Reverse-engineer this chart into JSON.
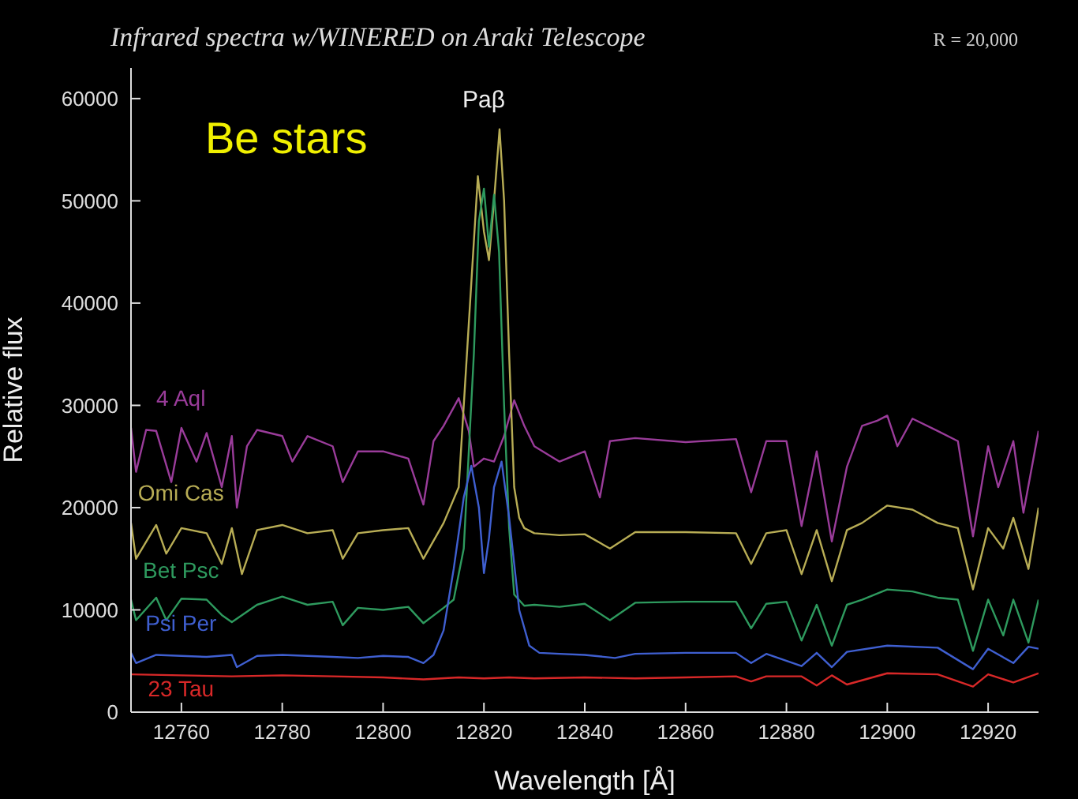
{
  "chart_data": {
    "type": "line",
    "title": "Infrared spectra w/WINERED on Araki Telescope",
    "xlabel": "Wavelength [Å]",
    "ylabel": "Relative flux",
    "annotations": [
      "R = 20,000",
      "Be stars",
      "Paβ"
    ],
    "xlim": [
      12750,
      12930
    ],
    "xticks": [
      12760,
      12780,
      12800,
      12820,
      12840,
      12860,
      12880,
      12900,
      12920
    ],
    "ylim": [
      0,
      63000
    ],
    "yticks": [
      0,
      10000,
      20000,
      30000,
      40000,
      50000,
      60000
    ],
    "grid": false,
    "legend": false,
    "marker": "none",
    "line_style": "solid",
    "series": [
      {
        "name": "4 Aql",
        "color": "#9a3c9a",
        "x": [
          12750,
          12751,
          12753,
          12755,
          12758,
          12760,
          12763,
          12765,
          12768,
          12770,
          12771,
          12773,
          12775,
          12780,
          12782,
          12785,
          12790,
          12792,
          12795,
          12800,
          12805,
          12808,
          12810,
          12812,
          12815,
          12817,
          12818,
          12820,
          12822,
          12824,
          12826,
          12828,
          12830,
          12835,
          12840,
          12843,
          12845,
          12850,
          12860,
          12870,
          12873,
          12876,
          12880,
          12883,
          12886,
          12889,
          12892,
          12895,
          12898,
          12900,
          12902,
          12905,
          12910,
          12914,
          12917,
          12920,
          12922,
          12925,
          12927,
          12930
        ],
        "values": [
          27800,
          23500,
          27600,
          27500,
          22500,
          27800,
          24500,
          27300,
          22000,
          27000,
          20000,
          26000,
          27600,
          27000,
          24500,
          27000,
          26000,
          22500,
          25500,
          25500,
          24800,
          20300,
          26500,
          28000,
          30700,
          27500,
          24000,
          24800,
          24500,
          27000,
          30500,
          28000,
          26000,
          24500,
          25500,
          21000,
          26500,
          26800,
          26400,
          26700,
          21500,
          26500,
          26500,
          18200,
          25500,
          16700,
          24000,
          28000,
          28500,
          29000,
          26000,
          28700,
          27500,
          26500,
          17200,
          26000,
          22000,
          26500,
          19500,
          27500
        ]
      },
      {
        "name": "Omi Cas",
        "color": "#b8ad55",
        "x": [
          12750,
          12751,
          12755,
          12757,
          12760,
          12765,
          12768,
          12770,
          12772,
          12775,
          12780,
          12785,
          12790,
          12792,
          12795,
          12800,
          12805,
          12808,
          12812,
          12815,
          12817,
          12818.8,
          12820,
          12821,
          12822,
          12823.1,
          12824,
          12825,
          12826,
          12827,
          12828,
          12830,
          12835,
          12840,
          12845,
          12850,
          12860,
          12870,
          12873,
          12876,
          12880,
          12883,
          12886,
          12889,
          12892,
          12895,
          12900,
          12905,
          12910,
          12914,
          12917,
          12920,
          12923,
          12925,
          12928,
          12930
        ],
        "values": [
          18500,
          15000,
          18300,
          15500,
          18000,
          17500,
          14500,
          18000,
          13500,
          17800,
          18300,
          17500,
          17800,
          15000,
          17500,
          17800,
          18000,
          15000,
          18500,
          22000,
          38000,
          52400,
          47000,
          44200,
          50000,
          57000,
          50000,
          35000,
          22000,
          19000,
          18000,
          17500,
          17300,
          17400,
          16000,
          17600,
          17600,
          17500,
          14500,
          17500,
          17800,
          13500,
          17800,
          12800,
          17800,
          18500,
          20200,
          19800,
          18500,
          18000,
          12000,
          18000,
          16000,
          19000,
          14000,
          20000
        ]
      },
      {
        "name": "Bet Psc",
        "color": "#2e9a5e",
        "x": [
          12750,
          12751,
          12755,
          12757,
          12760,
          12765,
          12768,
          12770,
          12775,
          12780,
          12785,
          12790,
          12792,
          12795,
          12800,
          12805,
          12808,
          12812,
          12814,
          12816,
          12818,
          12819,
          12820,
          12821,
          12822,
          12823,
          12824,
          12825,
          12826,
          12828,
          12830,
          12835,
          12840,
          12845,
          12850,
          12860,
          12870,
          12873,
          12876,
          12880,
          12883,
          12886,
          12889,
          12892,
          12895,
          12900,
          12905,
          12910,
          12914,
          12917,
          12920,
          12923,
          12925,
          12928,
          12930
        ],
        "values": [
          11000,
          9000,
          11200,
          9000,
          11100,
          11000,
          9500,
          8800,
          10500,
          11300,
          10500,
          10800,
          8500,
          10200,
          10000,
          10300,
          8700,
          10200,
          11000,
          16000,
          35000,
          48000,
          51200,
          45500,
          50600,
          45000,
          30000,
          18000,
          11500,
          10400,
          10500,
          10300,
          10600,
          9000,
          10700,
          10800,
          10800,
          8200,
          10600,
          10800,
          7000,
          10500,
          6500,
          10500,
          11000,
          12000,
          11800,
          11200,
          11000,
          6000,
          11000,
          7500,
          11000,
          6800,
          11000
        ]
      },
      {
        "name": "Psi Per",
        "color": "#3f5fd0",
        "x": [
          12750,
          12751,
          12755,
          12760,
          12765,
          12770,
          12771,
          12775,
          12780,
          12790,
          12795,
          12800,
          12805,
          12808,
          12810,
          12812,
          12814,
          12816,
          12817.5,
          12819,
          12820,
          12821,
          12822,
          12823.5,
          12825,
          12827,
          12829,
          12831,
          12835,
          12840,
          12846,
          12850,
          12860,
          12870,
          12873,
          12876,
          12883,
          12886,
          12889,
          12892,
          12900,
          12910,
          12917,
          12920,
          12925,
          12928,
          12930
        ],
        "values": [
          5800,
          4800,
          5600,
          5500,
          5400,
          5600,
          4400,
          5500,
          5600,
          5400,
          5300,
          5500,
          5400,
          4800,
          5600,
          8000,
          14000,
          21000,
          24100,
          20000,
          13600,
          17000,
          22000,
          24500,
          19000,
          10000,
          6500,
          5800,
          5700,
          5600,
          5300,
          5700,
          5800,
          5800,
          4800,
          5700,
          4500,
          5800,
          4400,
          5900,
          6500,
          6300,
          4200,
          6200,
          4800,
          6400,
          6200
        ]
      },
      {
        "name": "23 Tau",
        "color": "#d82828",
        "x": [
          12750,
          12760,
          12770,
          12780,
          12790,
          12800,
          12808,
          12815,
          12820,
          12825,
          12830,
          12840,
          12850,
          12860,
          12870,
          12873,
          12876,
          12883,
          12886,
          12889,
          12892,
          12900,
          12910,
          12917,
          12920,
          12925,
          12930
        ],
        "values": [
          3700,
          3600,
          3500,
          3600,
          3500,
          3400,
          3200,
          3400,
          3300,
          3400,
          3300,
          3400,
          3300,
          3400,
          3500,
          3000,
          3500,
          3500,
          2600,
          3600,
          2700,
          3800,
          3700,
          2500,
          3700,
          2900,
          3800
        ]
      }
    ]
  }
}
